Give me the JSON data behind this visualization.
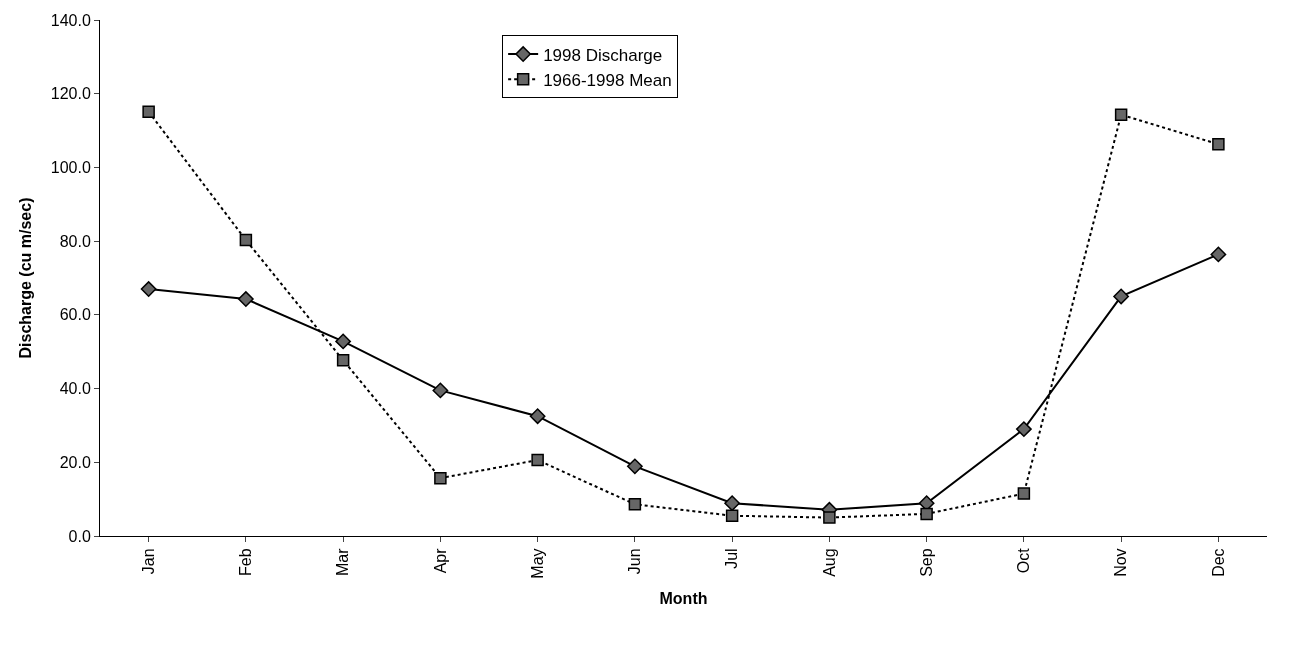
{
  "chart_data": {
    "type": "line",
    "xlabel": "Month",
    "ylabel": "Discharge (cu m/sec)",
    "categories": [
      "Jan",
      "Feb",
      "Mar",
      "Apr",
      "May",
      "Jun",
      "Jul",
      "Aug",
      "Sep",
      "Oct",
      "Nov",
      "Dec"
    ],
    "series": [
      {
        "name": "1998 Discharge",
        "color": "#000000",
        "marker": "diamond",
        "line_style": "solid",
        "values": [
          67.0,
          64.3,
          52.8,
          39.5,
          32.5,
          18.9,
          8.9,
          7.1,
          8.9,
          29.0,
          65.0,
          76.4
        ]
      },
      {
        "name": "1966-1998 Mean",
        "color": "#000000",
        "marker": "square",
        "line_style": "dotted",
        "values": [
          115.1,
          80.3,
          47.7,
          15.7,
          20.6,
          8.6,
          5.5,
          5.0,
          6.0,
          11.5,
          114.3,
          106.3
        ]
      }
    ],
    "ylim": [
      0,
      140
    ],
    "yticks": [
      {
        "value": 0,
        "label": "0.0"
      },
      {
        "value": 20,
        "label": "20.0"
      },
      {
        "value": 40,
        "label": "40.0"
      },
      {
        "value": 60,
        "label": "60.0"
      },
      {
        "value": 80,
        "label": "80.0"
      },
      {
        "value": 100,
        "label": "100.0"
      },
      {
        "value": 120,
        "label": "120.0"
      },
      {
        "value": 140,
        "label": "140.0"
      }
    ],
    "legend": "top"
  }
}
